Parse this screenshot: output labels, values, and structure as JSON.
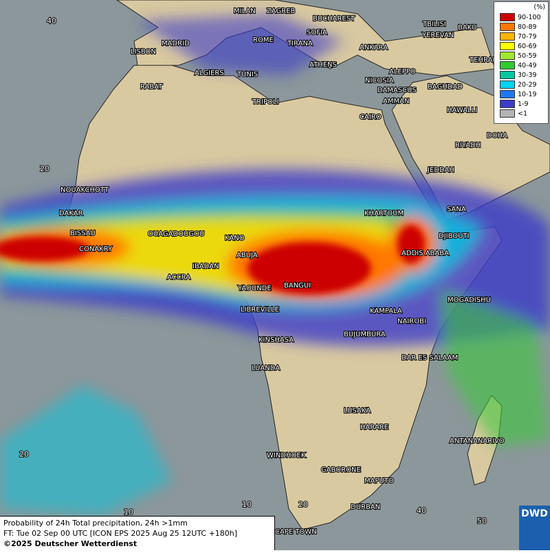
{
  "map": {
    "grid_labels": [
      "40",
      "20",
      "20",
      "10",
      "10",
      "20",
      "40",
      "50"
    ],
    "cities": [
      "MILAN",
      "ZAGREB",
      "BUCHAREST",
      "TBILISI",
      "BAKU",
      "YEREVAN",
      "SOFIA",
      "MADRID",
      "ROME",
      "LISBON",
      "ANKARA",
      "TIRANA",
      "ATHENS",
      "TEHRAN",
      "ALGIERS",
      "TUNIS",
      "ALEPPO",
      "NICOSIA",
      "RABAT",
      "BAGHDAD",
      "DAMASCUS",
      "AMMAN",
      "TRIPOLI",
      "HAWALLI",
      "CAIRO",
      "DOHA",
      "RIYADH",
      "JEDDAH",
      "NOUAKCHOTT",
      "SANA",
      "KHARTOUM",
      "DAKAR",
      "DJIBOUTI",
      "BISSAU",
      "OUAGADOUGOU",
      "KANO",
      "CONAKRY",
      "ADDIS ABABA",
      "ABUJA",
      "IBADAN",
      "ACCRA",
      "YAOUNDE",
      "BANGUI",
      "MOGADISHU",
      "LIBREVILLE",
      "KAMPALA",
      "NAIROBI",
      "KINSHASA",
      "BUJUMBURA",
      "DAR ES SALAAM",
      "LUANDA",
      "LUSAKA",
      "HARARE",
      "ANTANANARIVO",
      "WINDHOEK",
      "GABORONE",
      "MAPUTO",
      "DURBAN",
      "CAPE TOWN"
    ]
  },
  "legend": {
    "unit": "(%)",
    "entries": [
      {
        "label": "90-100",
        "color": "#cc0000"
      },
      {
        "label": "80-89",
        "color": "#ff7800"
      },
      {
        "label": "70-79",
        "color": "#ffb400"
      },
      {
        "label": "60-69",
        "color": "#ffff00"
      },
      {
        "label": "50-59",
        "color": "#a0e632"
      },
      {
        "label": "40-49",
        "color": "#32c832"
      },
      {
        "label": "30-39",
        "color": "#00c8a0"
      },
      {
        "label": "20-29",
        "color": "#00d2f0"
      },
      {
        "label": "10-19",
        "color": "#1e78f0"
      },
      {
        "label": "1-9",
        "color": "#3c3cc8"
      },
      {
        "label": "<1",
        "color": "#b4b4b4"
      }
    ]
  },
  "footer": {
    "lines": [
      "Probability of 24h Total precipitation, 24h >1mm",
      "FT: Tue 02 Sep 00 UTC [ICON EPS 2025 Aug 25 12UTC +180h]",
      "©2025 Deutscher Wetterdienst"
    ]
  },
  "logo": "DWD"
}
